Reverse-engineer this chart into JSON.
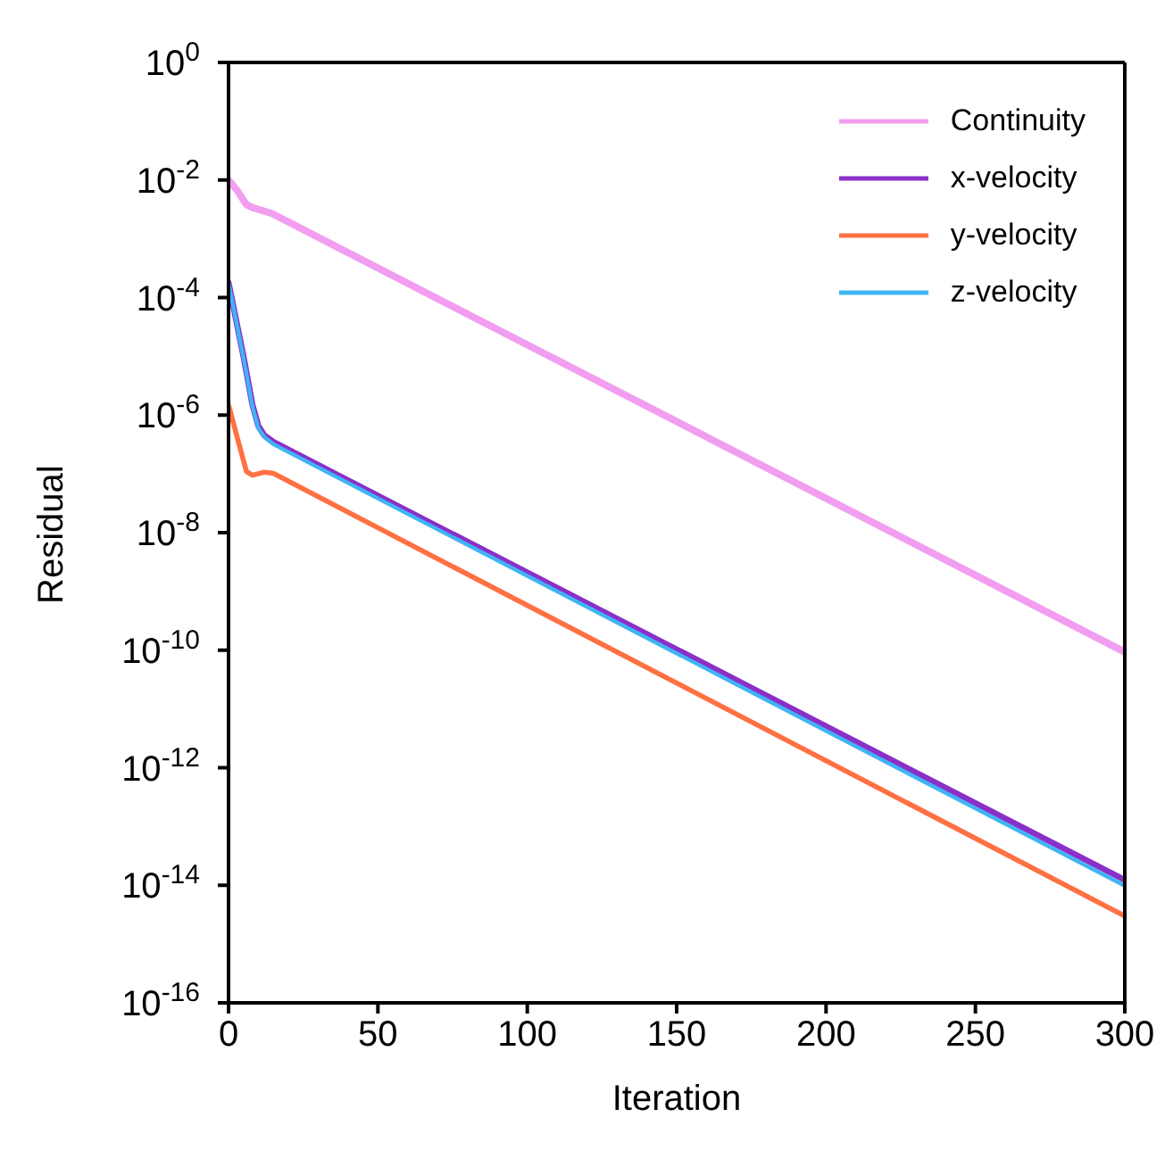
{
  "chart_data": {
    "type": "line",
    "xlabel": "Iteration",
    "ylabel": "Residual",
    "log": "y",
    "xlim": [
      0,
      300
    ],
    "xticks": [
      0,
      50,
      100,
      150,
      200,
      250,
      300
    ],
    "ylim": [
      1e-16,
      1
    ],
    "yticks": [
      {
        "value": 1e-16,
        "label": "10$^{-16}$"
      },
      {
        "value": 1e-14,
        "label": "10$^{-14}$"
      },
      {
        "value": 1e-12,
        "label": "10$^{-12}$"
      },
      {
        "value": 1e-10,
        "label": "10$^{-10}$"
      },
      {
        "value": 1e-08,
        "label": "10$^{-8}$"
      },
      {
        "value": 1e-06,
        "label": "10$^{-6}$"
      },
      {
        "value": 0.0001,
        "label": "10$^{-4}$"
      },
      {
        "value": 0.01,
        "label": "10$^{-2}$"
      },
      {
        "value": 1,
        "label": "10$^{0}$"
      }
    ],
    "legend": "top right",
    "marker": "none",
    "line_style": "solid",
    "series": [
      {
        "name": "Continuity",
        "color": "#f19ef0",
        "x": [
          0,
          3,
          6,
          8,
          14.5,
          300
        ],
        "values": [
          0.01,
          0.0065,
          0.0038,
          0.0034,
          0.0027,
          9.3e-11
        ]
      },
      {
        "name": "x-velocity",
        "color": "#8b2fc9",
        "x": [
          0,
          5,
          8,
          10,
          12,
          15,
          300
        ],
        "values": [
          0.00018,
          1e-05,
          1.5e-06,
          6.5e-07,
          4.5e-07,
          3.5e-07,
          1.23e-14
        ]
      },
      {
        "name": "y-velocity",
        "color": "#ff7043",
        "x": [
          0,
          3,
          6,
          8,
          12,
          15,
          300
        ],
        "values": [
          1.5e-06,
          4e-07,
          1.1e-07,
          9.5e-08,
          1.07e-07,
          1.02e-07,
          3e-15
        ]
      },
      {
        "name": "z-velocity",
        "color": "#3fb4f5",
        "x": [
          0,
          5,
          8,
          10,
          12,
          15,
          300
        ],
        "values": [
          0.00018,
          9.5e-06,
          1.4e-06,
          6e-07,
          4.2e-07,
          3.2e-07,
          9.8e-15
        ]
      }
    ]
  }
}
